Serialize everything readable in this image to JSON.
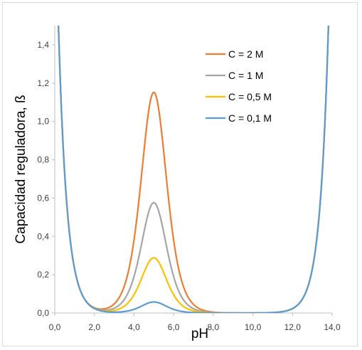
{
  "chart_data": {
    "type": "line",
    "title": "",
    "xlabel": "pH",
    "ylabel": "Capacidad reguladora, ß",
    "xlim": [
      0,
      14
    ],
    "ylim": [
      0,
      1.5
    ],
    "x_ticks": [
      "0,0",
      "2,0",
      "4,0",
      "6,0",
      "8,0",
      "10,0",
      "12,0",
      "14,0"
    ],
    "y_ticks": [
      "0,0",
      "0,2",
      "0,4",
      "0,6",
      "0,8",
      "1,0",
      "1,2",
      "1,4"
    ],
    "grid": false,
    "legend_position": "top-right",
    "pKa": 5.0,
    "series": [
      {
        "name": "C = 2 M",
        "concentration": 2,
        "color": "#ed7d31"
      },
      {
        "name": "C = 1 M",
        "concentration": 1,
        "color": "#a5a5a5"
      },
      {
        "name": "C = 0,5 M",
        "concentration": 0.5,
        "color": "#ffc000"
      },
      {
        "name": "C = 0,1 M",
        "concentration": 0.1,
        "color": "#5b9bd5"
      }
    ]
  }
}
